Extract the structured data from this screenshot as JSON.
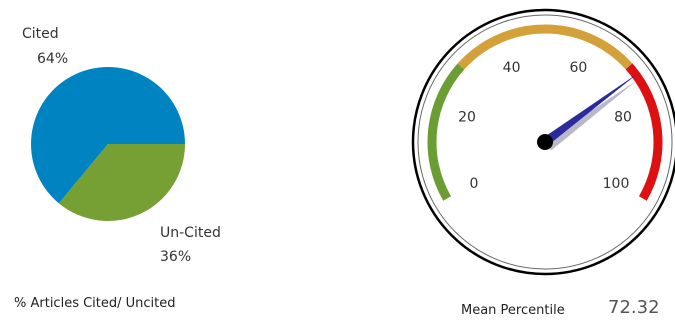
{
  "chart_data": [
    {
      "type": "pie",
      "title": "% Articles Cited/ Uncited",
      "slices": [
        {
          "name": "Cited",
          "value": 64,
          "label": "64%",
          "color": "#0083c1"
        },
        {
          "name": "Un-Cited",
          "value": 36,
          "label": "36%",
          "color": "#76a034"
        }
      ]
    },
    {
      "type": "gauge",
      "title": "Mean Percentile",
      "value": 72.32,
      "value_label": "72.32",
      "range": [
        0,
        100
      ],
      "ticks": [
        "0",
        "20",
        "40",
        "60",
        "80",
        "100"
      ],
      "bands": [
        {
          "from": 0,
          "to": 30,
          "color": "#6b9e32"
        },
        {
          "from": 30,
          "to": 70,
          "color": "#d4a03a"
        },
        {
          "from": 70,
          "to": 100,
          "color": "#dd1111"
        }
      ],
      "needle_color": "#2a2a9a"
    }
  ]
}
